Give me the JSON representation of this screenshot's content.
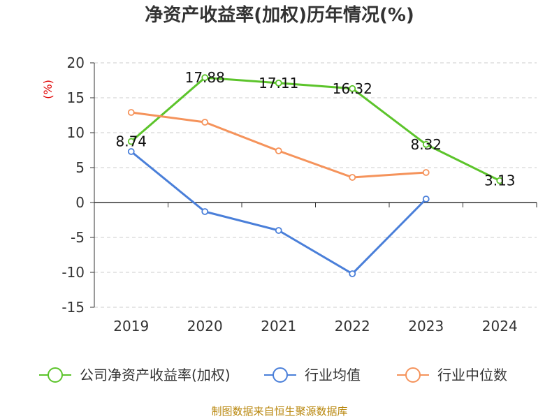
{
  "title": "净资产收益率(加权)历年情况(%)",
  "unit_label": "(%)",
  "source": "制图数据来自恒生聚源数据库",
  "colors": {
    "series_main": "#5cc42b",
    "series_avg": "#4a7fd9",
    "series_median": "#f5935b",
    "grid": "#cccccc",
    "axis": "#333333"
  },
  "chart_data": {
    "type": "line",
    "categories": [
      "2019",
      "2020",
      "2021",
      "2022",
      "2023",
      "2024"
    ],
    "ylim": [
      -15,
      20
    ],
    "yticks": [
      "20",
      "15",
      "10",
      "5",
      "0",
      "-5",
      "-10",
      "-15"
    ],
    "grid": true,
    "legend_position": "bottom",
    "series": [
      {
        "name": "公司净资产收益率(加权)",
        "values": [
          8.74,
          17.88,
          17.11,
          16.32,
          8.32,
          3.13
        ],
        "labels": [
          "8.74",
          "17.88",
          "17.11",
          "16.32",
          "8.32",
          "3.13"
        ]
      },
      {
        "name": "行业均值",
        "values": [
          7.3,
          -1.3,
          -4.0,
          -10.2,
          0.5,
          null
        ]
      },
      {
        "name": "行业中位数",
        "values": [
          12.9,
          11.5,
          7.4,
          3.6,
          4.3,
          null
        ]
      }
    ]
  }
}
